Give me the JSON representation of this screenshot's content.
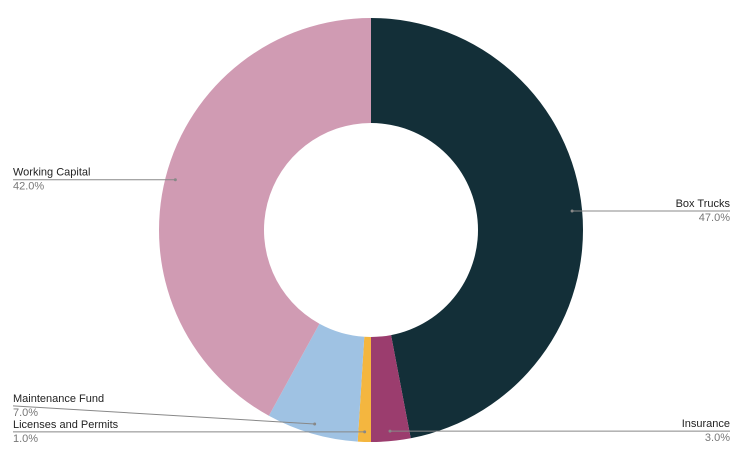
{
  "chart_data": {
    "type": "donut",
    "categories": [
      "Box Trucks",
      "Insurance",
      "Licenses and Permits",
      "Maintenance Fund",
      "Working Capital"
    ],
    "values": [
      47,
      3,
      1,
      7,
      42
    ],
    "value_labels": [
      "47.0%",
      "3.0%",
      "1.0%",
      "7.0%",
      "42.0%"
    ],
    "colors": [
      "#132f38",
      "#9b3d6e",
      "#f4b63f",
      "#9fc2e3",
      "#d09bb3"
    ]
  }
}
